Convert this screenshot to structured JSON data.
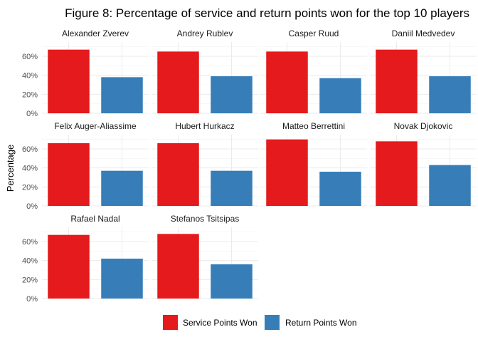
{
  "chart_data": {
    "type": "bar",
    "title": "Figure 8: Percentage of service and return points won for the top 10 players",
    "xlabel": "",
    "ylabel": "Percentage",
    "ylim": [
      0,
      0.75
    ],
    "yticks": [
      0,
      0.2,
      0.4,
      0.6
    ],
    "ytick_labels": [
      "0%",
      "20%",
      "40%",
      "60%"
    ],
    "grid": true,
    "legend_position": "bottom",
    "series": [
      {
        "name": "Service Points Won",
        "color": "#e41a1c"
      },
      {
        "name": "Return Points Won",
        "color": "#377eb8"
      }
    ],
    "facets": [
      {
        "label": "Alexander Zverev",
        "values": [
          0.67,
          0.38
        ]
      },
      {
        "label": "Andrey Rublev",
        "values": [
          0.65,
          0.39
        ]
      },
      {
        "label": "Casper Ruud",
        "values": [
          0.65,
          0.37
        ]
      },
      {
        "label": "Daniil Medvedev",
        "values": [
          0.67,
          0.39
        ]
      },
      {
        "label": "Felix Auger-Aliassime",
        "values": [
          0.66,
          0.37
        ]
      },
      {
        "label": "Hubert Hurkacz",
        "values": [
          0.66,
          0.37
        ]
      },
      {
        "label": "Matteo Berrettini",
        "values": [
          0.7,
          0.36
        ]
      },
      {
        "label": "Novak Djokovic",
        "values": [
          0.68,
          0.43
        ]
      },
      {
        "label": "Rafael Nadal",
        "values": [
          0.67,
          0.42
        ]
      },
      {
        "label": "Stefanos Tsitsipas",
        "values": [
          0.68,
          0.36
        ]
      }
    ]
  }
}
